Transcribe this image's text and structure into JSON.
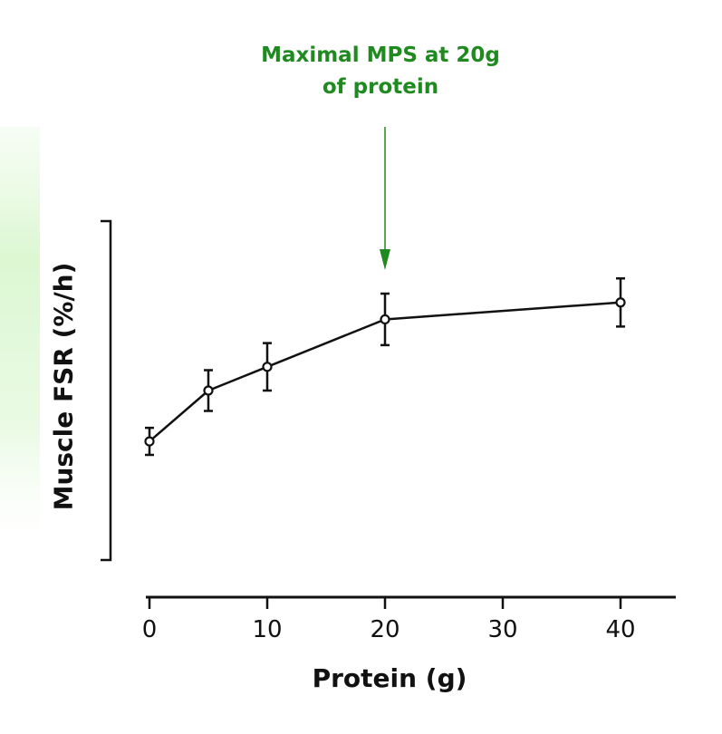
{
  "chart_data": {
    "type": "line",
    "xlabel": "Protein (g)",
    "ylabel": "Muscle FSR (%/h)",
    "x_ticks": [
      0,
      10,
      20,
      30,
      40
    ],
    "xlim": [
      0,
      45
    ],
    "ylim": [
      0,
      1
    ],
    "y_tick_labels": [],
    "grid": false,
    "x": [
      0,
      5,
      10,
      20,
      40
    ],
    "y": [
      0.35,
      0.5,
      0.57,
      0.71,
      0.76
    ],
    "error": [
      0.04,
      0.06,
      0.07,
      0.076,
      0.071
    ],
    "highlight_x": 20,
    "annotation": {
      "line1": "Maximal MPS at 20g",
      "line2": "of protein"
    },
    "colors": {
      "line": "#111111",
      "annotation": "#1f8a1f",
      "highlight": "#d9f7d0"
    }
  }
}
